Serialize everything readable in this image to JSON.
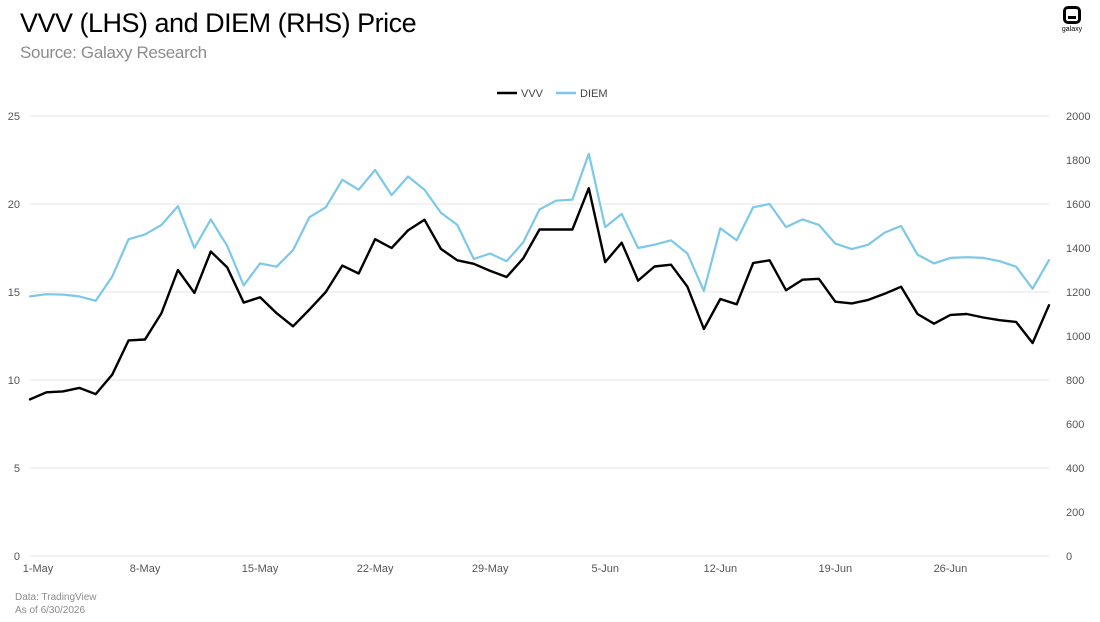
{
  "header": {
    "title": "VVV (LHS) and DIEM (RHS) Price",
    "subtitle": "Source: Galaxy Research"
  },
  "logo": {
    "text": "galaxy"
  },
  "footer": {
    "line1": "Data: TradingView",
    "line2": "As of 6/30/2026"
  },
  "chart_data": {
    "type": "line",
    "title": "VVV (LHS) and DIEM (RHS) Price",
    "subtitle": "Source: Galaxy Research",
    "x_start_label": "1-May",
    "x_ticks": [
      "1-May",
      "8-May",
      "15-May",
      "22-May",
      "29-May",
      "5-Jun",
      "12-Jun",
      "19-Jun",
      "26-Jun"
    ],
    "y_left": {
      "min": 0,
      "max": 25,
      "ticks": [
        "0",
        "5",
        "10",
        "15",
        "20",
        "25"
      ]
    },
    "y_right": {
      "min": 0,
      "max": 2000,
      "ticks": [
        "0",
        "200",
        "400",
        "600",
        "800",
        "1000",
        "1200",
        "1400",
        "1600",
        "1800",
        "2000"
      ]
    },
    "grid": true,
    "legend_position": "top-center",
    "series": [
      {
        "name": "VVV",
        "axis": "left",
        "color": "#000000",
        "values": [
          8.9,
          9.3,
          9.35,
          9.55,
          9.2,
          10.3,
          12.25,
          12.3,
          13.8,
          16.25,
          14.95,
          17.3,
          16.4,
          14.4,
          14.7,
          13.8,
          13.05,
          14.0,
          15.0,
          16.5,
          16.05,
          18.0,
          17.5,
          18.5,
          19.1,
          17.45,
          16.8,
          16.6,
          16.2,
          15.85,
          16.9,
          18.55,
          18.55,
          18.55,
          20.9,
          16.7,
          17.8,
          15.65,
          16.45,
          16.55,
          15.3,
          12.9,
          14.6,
          14.3,
          16.65,
          16.8,
          15.1,
          15.7,
          15.75,
          14.45,
          14.35,
          14.55,
          14.9,
          15.3,
          13.75,
          13.2,
          13.7,
          13.75,
          13.55,
          13.4,
          13.3,
          12.1,
          14.25
        ]
      },
      {
        "name": "DIEM",
        "axis": "right",
        "color": "#7cc8e8",
        "values": [
          1180,
          1190,
          1188,
          1180,
          1160,
          1270,
          1440,
          1462,
          1505,
          1590,
          1400,
          1530,
          1410,
          1230,
          1330,
          1315,
          1390,
          1540,
          1585,
          1710,
          1665,
          1755,
          1640,
          1725,
          1665,
          1560,
          1505,
          1350,
          1375,
          1340,
          1425,
          1575,
          1615,
          1620,
          1828,
          1495,
          1555,
          1400,
          1415,
          1435,
          1375,
          1205,
          1490,
          1435,
          1585,
          1600,
          1495,
          1530,
          1505,
          1420,
          1395,
          1415,
          1470,
          1500,
          1370,
          1330,
          1355,
          1358,
          1355,
          1340,
          1315,
          1215,
          1345
        ]
      }
    ]
  }
}
